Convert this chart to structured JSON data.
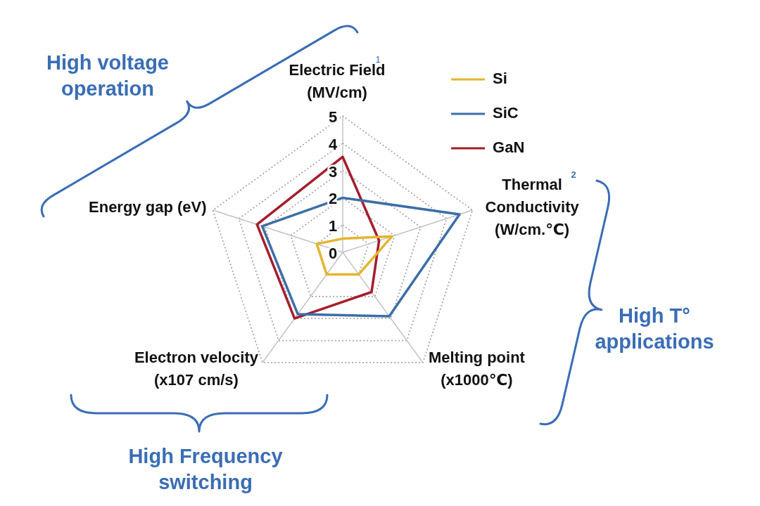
{
  "chart_data": {
    "type": "radar",
    "categories": [
      "Electric Field (MV/cm)",
      "Thermal Conductivity (W/cm.℃)",
      "Melting point (x1000℃)",
      "Electron velocity (x107 cm/s)",
      "Energy gap (eV)"
    ],
    "series": [
      {
        "name": "Si",
        "color": "#e5b42e",
        "values": [
          0.5,
          1.9,
          1.0,
          1.0,
          1.0
        ]
      },
      {
        "name": "SiC",
        "color": "#3c6ea6",
        "values": [
          2.0,
          4.5,
          2.9,
          2.8,
          3.1
        ]
      },
      {
        "name": "GaN",
        "color": "#a51d2d",
        "values": [
          3.5,
          1.4,
          1.8,
          3.0,
          3.3
        ]
      }
    ],
    "ylim": [
      0,
      5
    ],
    "yticks": [
      0,
      1,
      2,
      3,
      4,
      5
    ],
    "grid": true,
    "legend": "top right",
    "marker": "none",
    "line_style": "solid",
    "annotations": [
      "High voltage operation",
      "High T° applications",
      "High Frequency switching",
      "1",
      "2"
    ]
  }
}
